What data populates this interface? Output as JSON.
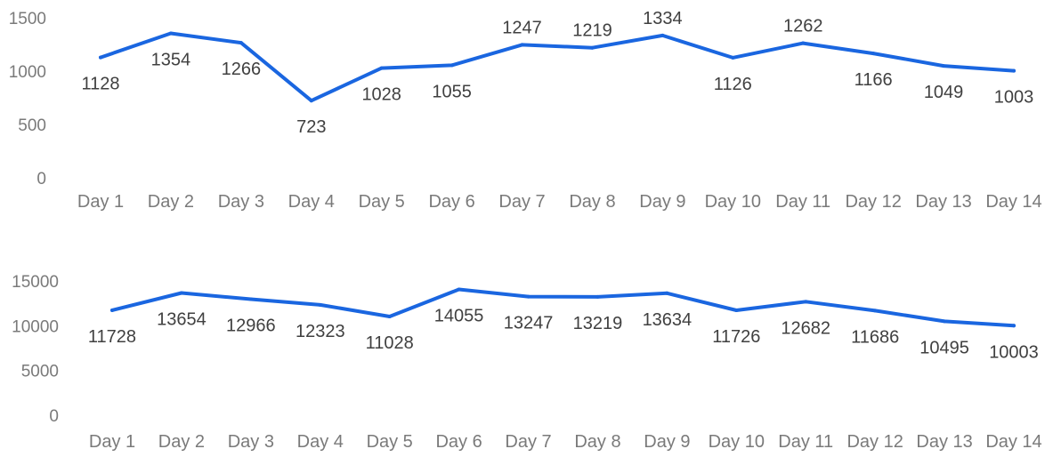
{
  "theme": {
    "line_color": "#1a66e0",
    "tick_color": "#7a7a7a",
    "label_color": "#404040"
  },
  "chart_data": [
    {
      "type": "line",
      "categories": [
        "Day 1",
        "Day 2",
        "Day 3",
        "Day 4",
        "Day 5",
        "Day 6",
        "Day 7",
        "Day 8",
        "Day 9",
        "Day 10",
        "Day 11",
        "Day 12",
        "Day 13",
        "Day 14"
      ],
      "series": [
        {
          "values": [
            1128,
            1354,
            1266,
            723,
            1028,
            1055,
            1247,
            1219,
            1334,
            1126,
            1262,
            1166,
            1049,
            1003
          ]
        }
      ],
      "yticks": [
        "0",
        "500",
        "1000",
        "1500"
      ],
      "ylim": [
        0,
        1500
      ],
      "grid": false,
      "data_labels": [
        "1128",
        "1354",
        "1266",
        "723",
        "1028",
        "1055",
        "1247",
        "1219",
        "1334",
        "1126",
        "1262",
        "1166",
        "1049",
        "1003"
      ],
      "label_position": [
        "below",
        "below",
        "below",
        "below",
        "below",
        "below",
        "above",
        "above",
        "above",
        "below",
        "above",
        "below",
        "below",
        "below"
      ]
    },
    {
      "type": "line",
      "categories": [
        "Day 1",
        "Day 2",
        "Day 3",
        "Day 4",
        "Day 5",
        "Day 6",
        "Day 7",
        "Day 8",
        "Day 9",
        "Day 10",
        "Day 11",
        "Day 12",
        "Day 13",
        "Day 14"
      ],
      "series": [
        {
          "values": [
            11728,
            13654,
            12966,
            12323,
            11028,
            14055,
            13247,
            13219,
            13634,
            11726,
            12682,
            11686,
            10495,
            10003
          ]
        }
      ],
      "yticks": [
        "0",
        "5000",
        "10000",
        "15000"
      ],
      "ylim": [
        0,
        15000
      ],
      "grid": false,
      "data_labels": [
        "11728",
        "13654",
        "12966",
        "12323",
        "11028",
        "14055",
        "13247",
        "13219",
        "13634",
        "11726",
        "12682",
        "11686",
        "10495",
        "10003"
      ],
      "label_position": [
        "below",
        "below",
        "below",
        "below",
        "below",
        "below",
        "below",
        "below",
        "below",
        "below",
        "below",
        "below",
        "below",
        "below"
      ]
    }
  ]
}
